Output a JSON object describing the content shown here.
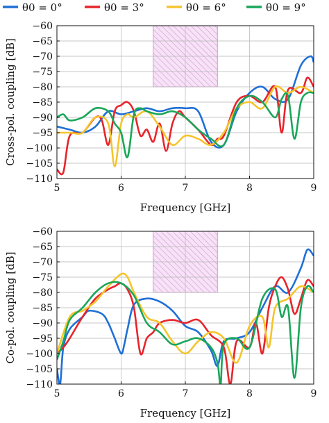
{
  "legend": [
    {
      "label": "θ0 = 0°",
      "color": "#1f6fd6"
    },
    {
      "label": "θ0 = 3°",
      "color": "#e8242b"
    },
    {
      "label": "θ0 = 6°",
      "color": "#f5c42c"
    },
    {
      "label": "θ0 = 9°",
      "color": "#1aa65a"
    }
  ],
  "chart_data": [
    {
      "type": "line",
      "xlabel": "Frequency [GHz]",
      "ylabel": "Cross-pol. coupling [dB]",
      "xlim": [
        5,
        9
      ],
      "ylim": [
        -110,
        -60
      ],
      "xticks": [
        5,
        6,
        7,
        8,
        9
      ],
      "yticks": [
        -60,
        -65,
        -70,
        -75,
        -80,
        -85,
        -90,
        -95,
        -100,
        -105,
        -110
      ],
      "grid": true,
      "highlight_band": {
        "x": [
          6.5,
          7.5
        ],
        "y": [
          -80,
          -60
        ],
        "style": "hatched-violet"
      },
      "series": [
        {
          "name": "θ0 = 0°",
          "color": "#1f6fd6",
          "x": [
            5,
            5.2,
            5.4,
            5.6,
            5.8,
            6.0,
            6.2,
            6.4,
            6.6,
            6.8,
            7.0,
            7.2,
            7.4,
            7.6,
            7.8,
            8.0,
            8.2,
            8.4,
            8.6,
            8.8,
            8.95,
            9.0
          ],
          "values": [
            -93,
            -94,
            -95,
            -93,
            -88,
            -89,
            -88,
            -87,
            -88,
            -87,
            -87,
            -88,
            -98,
            -99,
            -88,
            -82,
            -80,
            -84,
            -84,
            -73,
            -70,
            -72
          ]
        },
        {
          "name": "θ0 = 3°",
          "color": "#e8242b",
          "x": [
            5,
            5.1,
            5.2,
            5.4,
            5.6,
            5.7,
            5.8,
            5.9,
            6.0,
            6.1,
            6.2,
            6.3,
            6.4,
            6.5,
            6.6,
            6.7,
            6.8,
            6.9,
            7.0,
            7.2,
            7.4,
            7.5,
            7.6,
            7.8,
            8.0,
            8.2,
            8.4,
            8.5,
            8.6,
            8.8,
            8.9,
            9.0
          ],
          "values": [
            -107,
            -108,
            -96,
            -95,
            -90,
            -91,
            -99,
            -88,
            -86,
            -85,
            -88,
            -96,
            -94,
            -98,
            -92,
            -101,
            -92,
            -88,
            -90,
            -94,
            -99,
            -97,
            -96,
            -85,
            -83,
            -85,
            -80,
            -95,
            -81,
            -82,
            -77,
            -80
          ]
        },
        {
          "name": "θ0 = 6°",
          "color": "#f5c42c",
          "x": [
            5,
            5.2,
            5.4,
            5.6,
            5.8,
            5.9,
            6.0,
            6.1,
            6.2,
            6.4,
            6.6,
            6.8,
            7.0,
            7.2,
            7.4,
            7.6,
            7.8,
            8.0,
            8.2,
            8.4,
            8.6,
            8.8,
            9.0
          ],
          "values": [
            -95,
            -95,
            -95,
            -90,
            -92,
            -106,
            -92,
            -89,
            -90,
            -88,
            -93,
            -99,
            -96,
            -97,
            -99,
            -95,
            -87,
            -85,
            -87,
            -80,
            -82,
            -80,
            -82
          ]
        },
        {
          "name": "θ0 = 9°",
          "color": "#1aa65a",
          "x": [
            5,
            5.1,
            5.2,
            5.4,
            5.6,
            5.8,
            5.9,
            6.0,
            6.1,
            6.2,
            6.3,
            6.4,
            6.6,
            6.8,
            7.0,
            7.2,
            7.4,
            7.6,
            7.8,
            8.0,
            8.2,
            8.4,
            8.5,
            8.6,
            8.7,
            8.8,
            8.9,
            9.0
          ],
          "values": [
            -90,
            -89,
            -91,
            -90,
            -87,
            -88,
            -92,
            -95,
            -103,
            -89,
            -87,
            -88,
            -89,
            -88,
            -90,
            -94,
            -97,
            -99,
            -87,
            -83,
            -85,
            -90,
            -84,
            -83,
            -97,
            -85,
            -82,
            -82
          ]
        }
      ]
    },
    {
      "type": "line",
      "xlabel": "Frequency [GHz]",
      "ylabel": "Co-pol. coupling [dB]",
      "xlim": [
        5,
        9
      ],
      "ylim": [
        -110,
        -60
      ],
      "xticks": [
        5,
        6,
        7,
        8,
        9
      ],
      "yticks": [
        -60,
        -65,
        -70,
        -75,
        -80,
        -85,
        -90,
        -95,
        -100,
        -105,
        -110
      ],
      "grid": true,
      "highlight_band": {
        "x": [
          6.5,
          7.5
        ],
        "y": [
          -80,
          -60
        ],
        "style": "hatched-violet"
      },
      "series": [
        {
          "name": "θ0 = 0°",
          "color": "#1f6fd6",
          "x": [
            5,
            5.05,
            5.1,
            5.2,
            5.4,
            5.5,
            5.7,
            5.8,
            5.9,
            6.0,
            6.05,
            6.1,
            6.2,
            6.4,
            6.6,
            6.8,
            7.0,
            7.2,
            7.4,
            7.5,
            7.6,
            7.8,
            8.0,
            8.2,
            8.4,
            8.6,
            8.8,
            8.9,
            9.0
          ],
          "values": [
            -105,
            -110,
            -98,
            -92,
            -88,
            -86,
            -87,
            -90,
            -95,
            -100,
            -97,
            -92,
            -84,
            -82,
            -83,
            -86,
            -91,
            -93,
            -99,
            -104,
            -96,
            -95,
            -93,
            -85,
            -78,
            -80,
            -72,
            -66,
            -68
          ]
        },
        {
          "name": "θ0 = 3°",
          "color": "#e8242b",
          "x": [
            5,
            5.1,
            5.2,
            5.4,
            5.6,
            5.8,
            5.9,
            6.0,
            6.1,
            6.2,
            6.3,
            6.4,
            6.5,
            6.6,
            6.8,
            7.0,
            7.2,
            7.4,
            7.6,
            7.7,
            7.8,
            8.0,
            8.1,
            8.2,
            8.3,
            8.4,
            8.5,
            8.6,
            8.7,
            8.8,
            8.9,
            9.0
          ],
          "values": [
            -100,
            -98,
            -95,
            -88,
            -82,
            -79,
            -78,
            -77,
            -79,
            -85,
            -100,
            -95,
            -93,
            -90,
            -89,
            -90,
            -89,
            -94,
            -98,
            -110,
            -96,
            -98,
            -90,
            -100,
            -85,
            -78,
            -75,
            -79,
            -87,
            -82,
            -76,
            -78
          ]
        },
        {
          "name": "θ0 = 6°",
          "color": "#f5c42c",
          "x": [
            5,
            5.2,
            5.4,
            5.6,
            5.8,
            6.0,
            6.1,
            6.2,
            6.4,
            6.6,
            6.8,
            7.0,
            7.2,
            7.4,
            7.6,
            7.8,
            8.0,
            8.2,
            8.3,
            8.4,
            8.6,
            8.8,
            9.0
          ],
          "values": [
            -100,
            -88,
            -86,
            -83,
            -78,
            -74,
            -75,
            -80,
            -88,
            -90,
            -96,
            -100,
            -96,
            -93,
            -95,
            -103,
            -91,
            -88,
            -98,
            -85,
            -82,
            -78,
            -80
          ]
        },
        {
          "name": "θ0 = 9°",
          "color": "#1aa65a",
          "x": [
            5,
            5.1,
            5.2,
            5.4,
            5.6,
            5.8,
            6.0,
            6.2,
            6.4,
            6.6,
            6.8,
            7.0,
            7.2,
            7.4,
            7.5,
            7.55,
            7.6,
            7.8,
            8.0,
            8.2,
            8.4,
            8.5,
            8.6,
            8.7,
            8.8,
            8.9,
            9.0
          ],
          "values": [
            -102,
            -96,
            -89,
            -85,
            -80,
            -77,
            -77,
            -81,
            -90,
            -93,
            -97,
            -96,
            -95,
            -98,
            -103,
            -110,
            -97,
            -95,
            -98,
            -82,
            -79,
            -88,
            -85,
            -108,
            -85,
            -78,
            -80
          ]
        }
      ]
    }
  ]
}
